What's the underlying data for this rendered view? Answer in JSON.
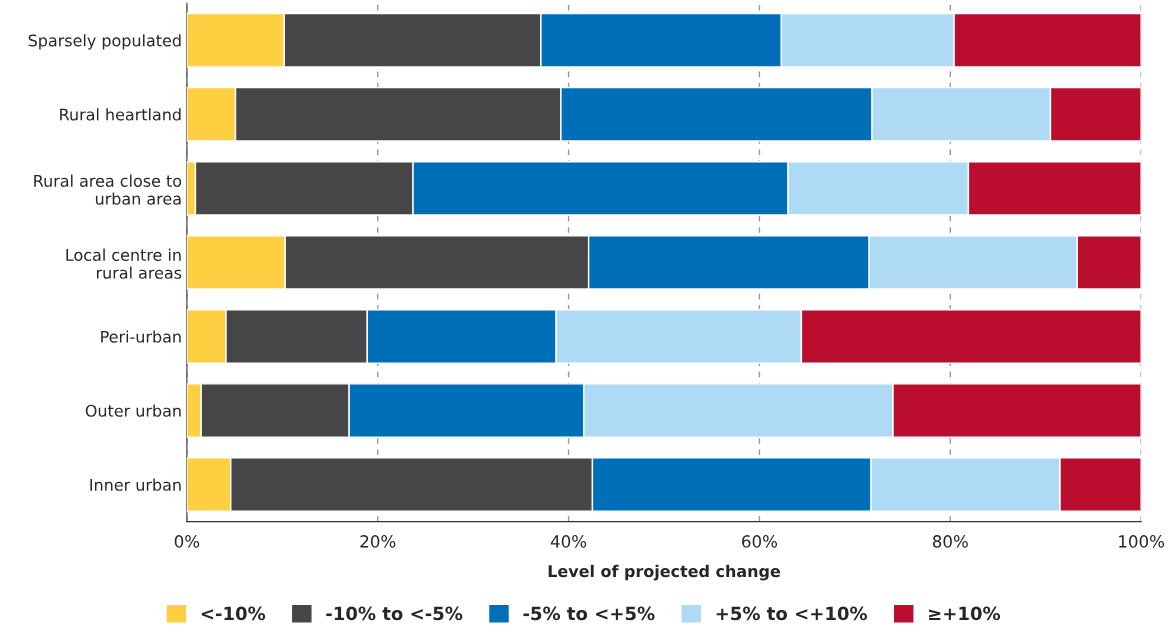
{
  "chart_data": {
    "type": "bar",
    "orientation": "horizontal",
    "stacked": true,
    "categories": [
      "Sparsely populated",
      "Rural heartland",
      "Rural area close to\nurban area",
      "Local centre in\nrural areas",
      "Peri-urban",
      "Outer urban",
      "Inner urban"
    ],
    "series": [
      {
        "name": "<-10%",
        "color": "#fdcf41",
        "values": [
          10.2,
          5.1,
          0.9,
          10.3,
          4.1,
          1.5,
          4.6
        ]
      },
      {
        "name": "-10% to <-5%",
        "color": "#464547",
        "values": [
          26.9,
          34.1,
          22.8,
          31.8,
          14.8,
          15.5,
          37.9
        ]
      },
      {
        "name": "-5% to <+5%",
        "color": "#006fb9",
        "values": [
          25.2,
          32.6,
          39.3,
          29.4,
          19.8,
          24.6,
          29.2
        ]
      },
      {
        "name": "+5% to <+10%",
        "color": "#afdaf5",
        "values": [
          18.1,
          18.7,
          18.9,
          21.8,
          25.7,
          32.4,
          19.8
        ]
      },
      {
        "name": "≥+10%",
        "color": "#bb0e2f",
        "values": [
          19.6,
          9.5,
          18.1,
          6.7,
          35.6,
          26.0,
          8.5
        ]
      }
    ],
    "xlabel": "Level of projected change",
    "xlim": [
      0,
      100
    ],
    "xticks": [
      {
        "value": 0,
        "label": "0%"
      },
      {
        "value": 20,
        "label": "20%"
      },
      {
        "value": 40,
        "label": "40%"
      },
      {
        "value": 60,
        "label": "60%"
      },
      {
        "value": 80,
        "label": "80%"
      },
      {
        "value": 100,
        "label": "100%"
      }
    ],
    "grid": "x",
    "legend": "bottom"
  }
}
